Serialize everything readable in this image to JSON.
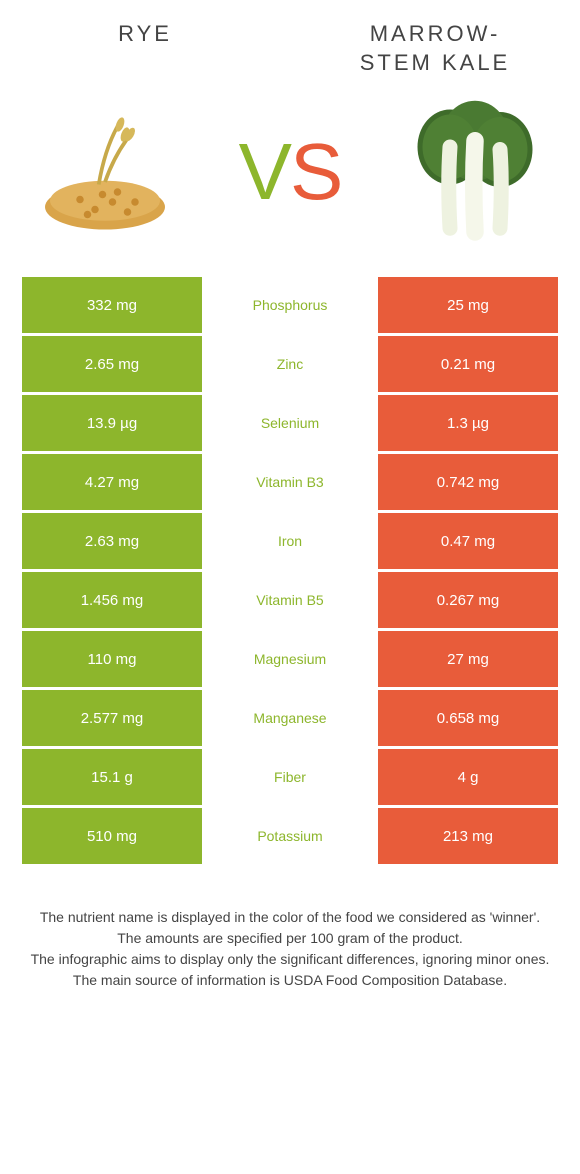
{
  "header": {
    "left": "RYE",
    "right_line1": "MARROW-",
    "right_line2": "STEM KALE"
  },
  "vs": {
    "v": "V",
    "s": "S"
  },
  "colors": {
    "left": "#8db62c",
    "right": "#e85c3a",
    "nutrient_winner_left": "#8db62c"
  },
  "rows": [
    {
      "left": "332 mg",
      "nutrient": "Phosphorus",
      "right": "25 mg",
      "winner": "left"
    },
    {
      "left": "2.65 mg",
      "nutrient": "Zinc",
      "right": "0.21 mg",
      "winner": "left"
    },
    {
      "left": "13.9 µg",
      "nutrient": "Selenium",
      "right": "1.3 µg",
      "winner": "left"
    },
    {
      "left": "4.27 mg",
      "nutrient": "Vitamin B3",
      "right": "0.742 mg",
      "winner": "left"
    },
    {
      "left": "2.63 mg",
      "nutrient": "Iron",
      "right": "0.47 mg",
      "winner": "left"
    },
    {
      "left": "1.456 mg",
      "nutrient": "Vitamin B5",
      "right": "0.267 mg",
      "winner": "left"
    },
    {
      "left": "110 mg",
      "nutrient": "Magnesium",
      "right": "27 mg",
      "winner": "left"
    },
    {
      "left": "2.577 mg",
      "nutrient": "Manganese",
      "right": "0.658 mg",
      "winner": "left"
    },
    {
      "left": "15.1 g",
      "nutrient": "Fiber",
      "right": "4 g",
      "winner": "left"
    },
    {
      "left": "510 mg",
      "nutrient": "Potassium",
      "right": "213 mg",
      "winner": "left"
    }
  ],
  "footer": {
    "l1": "The nutrient name is displayed in the color of the food we considered as 'winner'.",
    "l2": "The amounts are specified per 100 gram of the product.",
    "l3": "The infographic aims to display only the significant differences, ignoring minor ones.",
    "l4": "The main source of information is USDA Food Composition Database."
  }
}
